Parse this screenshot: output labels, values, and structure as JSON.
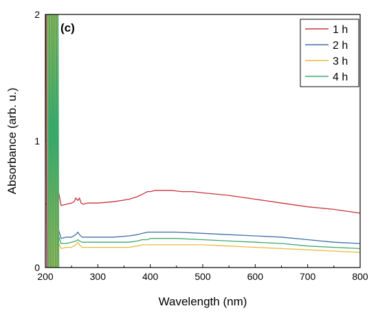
{
  "chart_data": {
    "type": "line",
    "panel_label": "(c)",
    "xlabel": "Wavelength (nm)",
    "ylabel": "Absorbance (arb. u.)",
    "xlim": [
      200,
      800
    ],
    "ylim": [
      0,
      2
    ],
    "x_ticks": [
      200,
      300,
      400,
      500,
      600,
      700,
      800
    ],
    "y_ticks": [
      0,
      1,
      2
    ],
    "legend_position": "top-right",
    "series": [
      {
        "name": "1 h",
        "color": "#c8303a",
        "x": [
          225,
          230,
          240,
          250,
          255,
          258,
          262,
          265,
          268,
          272,
          280,
          300,
          330,
          360,
          375,
          385,
          395,
          400,
          410,
          420,
          440,
          460,
          480,
          500,
          550,
          600,
          650,
          700,
          750,
          800
        ],
        "y": [
          0.6,
          0.49,
          0.5,
          0.51,
          0.52,
          0.55,
          0.53,
          0.55,
          0.51,
          0.5,
          0.51,
          0.51,
          0.52,
          0.54,
          0.56,
          0.58,
          0.6,
          0.6,
          0.61,
          0.61,
          0.61,
          0.6,
          0.6,
          0.59,
          0.57,
          0.54,
          0.51,
          0.48,
          0.46,
          0.43
        ]
      },
      {
        "name": "2 h",
        "color": "#3d6fa5",
        "x": [
          225,
          230,
          240,
          250,
          258,
          262,
          265,
          270,
          280,
          300,
          330,
          360,
          375,
          385,
          395,
          400,
          420,
          450,
          500,
          550,
          600,
          650,
          700,
          750,
          800
        ],
        "y": [
          0.3,
          0.23,
          0.24,
          0.24,
          0.26,
          0.28,
          0.26,
          0.24,
          0.24,
          0.24,
          0.24,
          0.25,
          0.26,
          0.27,
          0.28,
          0.28,
          0.28,
          0.28,
          0.27,
          0.26,
          0.25,
          0.24,
          0.22,
          0.2,
          0.19
        ]
      },
      {
        "name": "3 h",
        "color": "#e8b83c",
        "x": [
          225,
          230,
          240,
          250,
          258,
          262,
          265,
          270,
          280,
          300,
          330,
          360,
          375,
          385,
          395,
          400,
          420,
          450,
          500,
          550,
          600,
          650,
          700,
          750,
          800
        ],
        "y": [
          0.2,
          0.15,
          0.16,
          0.16,
          0.18,
          0.2,
          0.18,
          0.16,
          0.16,
          0.16,
          0.16,
          0.16,
          0.17,
          0.18,
          0.18,
          0.18,
          0.18,
          0.18,
          0.18,
          0.17,
          0.16,
          0.15,
          0.14,
          0.13,
          0.12
        ]
      },
      {
        "name": "4 h",
        "color": "#3aa86b",
        "x": [
          225,
          230,
          240,
          250,
          258,
          262,
          265,
          270,
          280,
          300,
          330,
          360,
          375,
          385,
          395,
          400,
          420,
          450,
          500,
          550,
          600,
          650,
          700,
          750,
          800
        ],
        "y": [
          0.25,
          0.19,
          0.19,
          0.2,
          0.21,
          0.22,
          0.21,
          0.2,
          0.2,
          0.2,
          0.2,
          0.2,
          0.21,
          0.22,
          0.22,
          0.23,
          0.23,
          0.23,
          0.22,
          0.21,
          0.2,
          0.19,
          0.17,
          0.16,
          0.15
        ]
      }
    ]
  }
}
